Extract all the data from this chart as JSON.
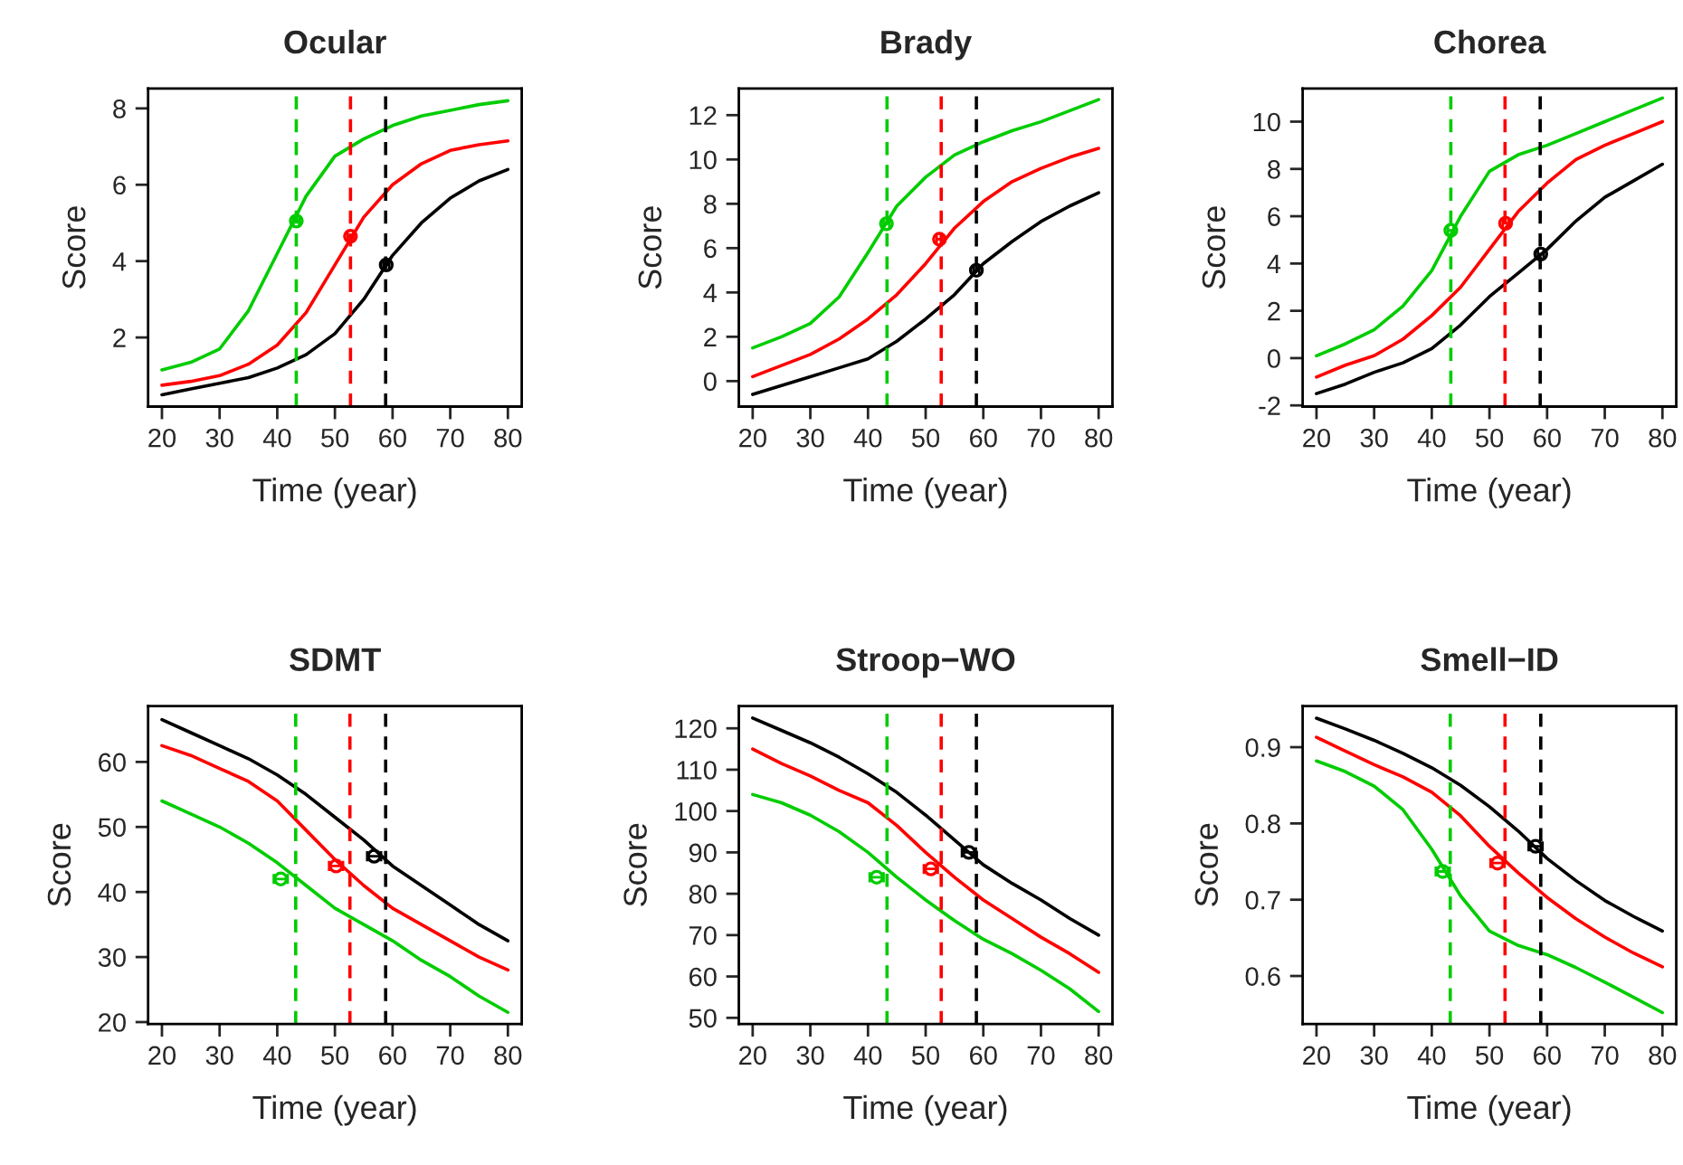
{
  "chart_data": [
    {
      "type": "line",
      "title": "Ocular",
      "xlabel": "Time (year)",
      "ylabel": "Score",
      "x": [
        20,
        25,
        30,
        35,
        40,
        45,
        50,
        55,
        60,
        65,
        70,
        75,
        80
      ],
      "xlim": [
        17.6,
        82.4
      ],
      "xticks": [
        20,
        30,
        40,
        50,
        60,
        70,
        80
      ],
      "ylim": [
        0.19,
        8.52
      ],
      "yticks": [
        2,
        4,
        6,
        8
      ],
      "grid": false,
      "legend": false,
      "series": [
        {
          "color": "#00cc00",
          "values": [
            1.15,
            1.35,
            1.7,
            2.7,
            4.2,
            5.7,
            6.75,
            7.2,
            7.55,
            7.8,
            7.95,
            8.1,
            8.2
          ]
        },
        {
          "color": "#ff0000",
          "values": [
            0.75,
            0.85,
            1.0,
            1.3,
            1.8,
            2.65,
            3.9,
            5.15,
            6.0,
            6.55,
            6.9,
            7.05,
            7.15
          ]
        },
        {
          "color": "#000000",
          "values": [
            0.5,
            0.65,
            0.8,
            0.95,
            1.2,
            1.55,
            2.1,
            3.0,
            4.15,
            5.0,
            5.65,
            6.1,
            6.4
          ]
        },
        {
          "type": "scatter",
          "marker": "circle",
          "x": [
            43.3,
            52.7,
            58.9
          ],
          "values": [
            5.05,
            4.65,
            3.9
          ],
          "xerrors": [
            0.5,
            0.5,
            0.5
          ],
          "colors": [
            "#00cc00",
            "#ff0000",
            "#000000"
          ]
        }
      ],
      "ref_lines": [
        {
          "axis": "x",
          "value": 43.3,
          "color": "#00cc00",
          "line_style": "dashed"
        },
        {
          "axis": "x",
          "value": 52.7,
          "color": "#ff0000",
          "line_style": "dashed"
        },
        {
          "axis": "x",
          "value": 58.8,
          "color": "#000000",
          "line_style": "dashed"
        }
      ]
    },
    {
      "type": "line",
      "title": "Brady",
      "xlabel": "Time (year)",
      "ylabel": "Score",
      "x": [
        20,
        25,
        30,
        35,
        40,
        45,
        50,
        55,
        60,
        65,
        70,
        75,
        80
      ],
      "xlim": [
        17.6,
        82.4
      ],
      "xticks": [
        20,
        30,
        40,
        50,
        60,
        70,
        80
      ],
      "ylim": [
        -1.15,
        13.2
      ],
      "yticks": [
        0,
        2,
        4,
        6,
        8,
        10,
        12
      ],
      "grid": false,
      "legend": false,
      "series": [
        {
          "color": "#00cc00",
          "values": [
            1.5,
            2.0,
            2.6,
            3.8,
            5.8,
            7.9,
            9.2,
            10.2,
            10.8,
            11.3,
            11.7,
            12.2,
            12.7
          ]
        },
        {
          "color": "#ff0000",
          "values": [
            0.2,
            0.7,
            1.2,
            1.9,
            2.8,
            3.9,
            5.3,
            6.9,
            8.1,
            9.0,
            9.6,
            10.1,
            10.5
          ]
        },
        {
          "color": "#000000",
          "values": [
            -0.6,
            -0.2,
            0.2,
            0.6,
            1.0,
            1.8,
            2.8,
            3.9,
            5.3,
            6.3,
            7.2,
            7.9,
            8.5
          ]
        },
        {
          "type": "scatter",
          "marker": "circle",
          "x": [
            43.2,
            52.4,
            58.8
          ],
          "values": [
            7.1,
            6.4,
            5.0
          ],
          "xerrors": [
            0.5,
            0.5,
            0.5
          ],
          "colors": [
            "#00cc00",
            "#ff0000",
            "#000000"
          ]
        }
      ],
      "ref_lines": [
        {
          "axis": "x",
          "value": 43.3,
          "color": "#00cc00",
          "line_style": "dashed"
        },
        {
          "axis": "x",
          "value": 52.7,
          "color": "#ff0000",
          "line_style": "dashed"
        },
        {
          "axis": "x",
          "value": 58.8,
          "color": "#000000",
          "line_style": "dashed"
        }
      ]
    },
    {
      "type": "line",
      "title": "Chorea",
      "xlabel": "Time (year)",
      "ylabel": "Score",
      "x": [
        20,
        25,
        30,
        35,
        40,
        45,
        50,
        55,
        60,
        65,
        70,
        75,
        80
      ],
      "xlim": [
        17.6,
        82.4
      ],
      "xticks": [
        20,
        30,
        40,
        50,
        60,
        70,
        80
      ],
      "ylim": [
        -2.05,
        11.4
      ],
      "yticks": [
        -2,
        0,
        2,
        4,
        6,
        8,
        10
      ],
      "grid": false,
      "legend": false,
      "series": [
        {
          "color": "#00cc00",
          "values": [
            0.1,
            0.6,
            1.2,
            2.2,
            3.7,
            6.0,
            7.9,
            8.6,
            9.0,
            9.5,
            10.0,
            10.5,
            11.0
          ]
        },
        {
          "color": "#ff0000",
          "values": [
            -0.8,
            -0.3,
            0.1,
            0.8,
            1.8,
            3.0,
            4.6,
            6.2,
            7.4,
            8.4,
            9.0,
            9.5,
            10.0
          ]
        },
        {
          "color": "#000000",
          "values": [
            -1.5,
            -1.1,
            -0.6,
            -0.2,
            0.4,
            1.4,
            2.6,
            3.6,
            4.6,
            5.8,
            6.8,
            7.5,
            8.2
          ]
        },
        {
          "type": "scatter",
          "marker": "circle",
          "x": [
            43.3,
            52.8,
            58.9
          ],
          "values": [
            5.4,
            5.7,
            4.4
          ],
          "xerrors": [
            0.5,
            0.5,
            0.5
          ],
          "colors": [
            "#00cc00",
            "#ff0000",
            "#000000"
          ]
        }
      ],
      "ref_lines": [
        {
          "axis": "x",
          "value": 43.3,
          "color": "#00cc00",
          "line_style": "dashed"
        },
        {
          "axis": "x",
          "value": 52.7,
          "color": "#ff0000",
          "line_style": "dashed"
        },
        {
          "axis": "x",
          "value": 58.8,
          "color": "#000000",
          "line_style": "dashed"
        }
      ]
    },
    {
      "type": "line",
      "title": "SDMT",
      "xlabel": "Time (year)",
      "ylabel": "Score",
      "x": [
        20,
        25,
        30,
        35,
        40,
        45,
        50,
        55,
        60,
        65,
        70,
        75,
        80
      ],
      "xlim": [
        17.6,
        82.4
      ],
      "xticks": [
        20,
        30,
        40,
        50,
        60,
        70,
        80
      ],
      "ylim": [
        19.7,
        68.6
      ],
      "yticks": [
        20,
        30,
        40,
        50,
        60
      ],
      "grid": false,
      "legend": false,
      "series": [
        {
          "color": "#00cc00",
          "values": [
            54,
            52,
            50,
            47.5,
            44.5,
            41,
            37.5,
            35,
            32.5,
            29.5,
            27,
            24,
            21.5
          ]
        },
        {
          "color": "#ff0000",
          "values": [
            62.5,
            61,
            59,
            57,
            54,
            49.5,
            45,
            41,
            37.5,
            35,
            32.5,
            30,
            28
          ]
        },
        {
          "color": "#000000",
          "values": [
            66.5,
            64.5,
            62.5,
            60.5,
            58,
            55,
            51.5,
            48,
            44,
            41,
            38,
            35,
            32.5
          ]
        },
        {
          "type": "scatter",
          "marker": "circle",
          "x": [
            40.6,
            50.2,
            56.8
          ],
          "values": [
            42,
            44,
            45.5
          ],
          "xerrors": [
            1.2,
            1.2,
            1.2
          ],
          "colors": [
            "#00cc00",
            "#ff0000",
            "#000000"
          ]
        }
      ],
      "ref_lines": [
        {
          "axis": "x",
          "value": 43.2,
          "color": "#00cc00",
          "line_style": "dashed"
        },
        {
          "axis": "x",
          "value": 52.6,
          "color": "#ff0000",
          "line_style": "dashed"
        },
        {
          "axis": "x",
          "value": 58.8,
          "color": "#000000",
          "line_style": "dashed"
        }
      ]
    },
    {
      "type": "line",
      "title": "Stroop−WO",
      "xlabel": "Time (year)",
      "ylabel": "Score",
      "x": [
        20,
        25,
        30,
        35,
        40,
        45,
        50,
        55,
        60,
        65,
        70,
        75,
        80
      ],
      "xlim": [
        17.6,
        82.4
      ],
      "xticks": [
        20,
        30,
        40,
        50,
        60,
        70,
        80
      ],
      "ylim": [
        48.5,
        125.4
      ],
      "yticks": [
        50,
        60,
        70,
        80,
        90,
        100,
        110,
        120
      ],
      "grid": false,
      "legend": false,
      "series": [
        {
          "color": "#00cc00",
          "values": [
            104,
            102,
            99,
            95,
            90,
            84,
            78.5,
            73.5,
            69,
            65.5,
            61.5,
            57,
            51.5
          ]
        },
        {
          "color": "#ff0000",
          "values": [
            115,
            111.5,
            108.5,
            105,
            102,
            96.5,
            90,
            84,
            78.5,
            74,
            69.5,
            65.5,
            61
          ]
        },
        {
          "color": "#000000",
          "values": [
            122.5,
            119.5,
            116.5,
            113,
            109,
            104.5,
            99,
            93,
            87,
            82.5,
            78.5,
            74,
            70
          ]
        },
        {
          "type": "scatter",
          "marker": "circle",
          "x": [
            41.5,
            50.9,
            57.5
          ],
          "values": [
            84,
            86,
            90
          ],
          "xerrors": [
            1.2,
            1.2,
            1.2
          ],
          "colors": [
            "#00cc00",
            "#ff0000",
            "#000000"
          ]
        }
      ],
      "ref_lines": [
        {
          "axis": "x",
          "value": 43.3,
          "color": "#00cc00",
          "line_style": "dashed"
        },
        {
          "axis": "x",
          "value": 52.7,
          "color": "#ff0000",
          "line_style": "dashed"
        },
        {
          "axis": "x",
          "value": 58.8,
          "color": "#000000",
          "line_style": "dashed"
        }
      ]
    },
    {
      "type": "line",
      "title": "Smell−ID",
      "xlabel": "Time (year)",
      "ylabel": "Score",
      "x": [
        20,
        25,
        30,
        35,
        40,
        45,
        50,
        55,
        60,
        65,
        70,
        75,
        80
      ],
      "xlim": [
        17.6,
        82.4
      ],
      "xticks": [
        20,
        30,
        40,
        50,
        60,
        70,
        80
      ],
      "ylim": [
        0.537,
        0.954
      ],
      "yticks": [
        0.6,
        0.7,
        0.8,
        0.9
      ],
      "grid": false,
      "legend": false,
      "series": [
        {
          "color": "#00cc00",
          "values": [
            0.882,
            0.868,
            0.849,
            0.818,
            0.766,
            0.705,
            0.659,
            0.64,
            0.628,
            0.611,
            0.592,
            0.572,
            0.552
          ]
        },
        {
          "color": "#ff0000",
          "values": [
            0.913,
            0.895,
            0.877,
            0.861,
            0.841,
            0.81,
            0.77,
            0.735,
            0.703,
            0.675,
            0.651,
            0.63,
            0.612
          ]
        },
        {
          "color": "#000000",
          "values": [
            0.938,
            0.924,
            0.909,
            0.892,
            0.873,
            0.85,
            0.822,
            0.79,
            0.754,
            0.725,
            0.699,
            0.678,
            0.659
          ]
        },
        {
          "type": "scatter",
          "marker": "circle",
          "x": [
            41.9,
            51.4,
            58.0
          ],
          "values": [
            0.737,
            0.748,
            0.77
          ],
          "xerrors": [
            1.2,
            1.2,
            1.2
          ],
          "colors": [
            "#00cc00",
            "#ff0000",
            "#000000"
          ]
        }
      ],
      "ref_lines": [
        {
          "axis": "x",
          "value": 43.2,
          "color": "#00cc00",
          "line_style": "dashed"
        },
        {
          "axis": "x",
          "value": 52.7,
          "color": "#ff0000",
          "line_style": "dashed"
        },
        {
          "axis": "x",
          "value": 58.9,
          "color": "#000000",
          "line_style": "dashed"
        }
      ]
    }
  ]
}
